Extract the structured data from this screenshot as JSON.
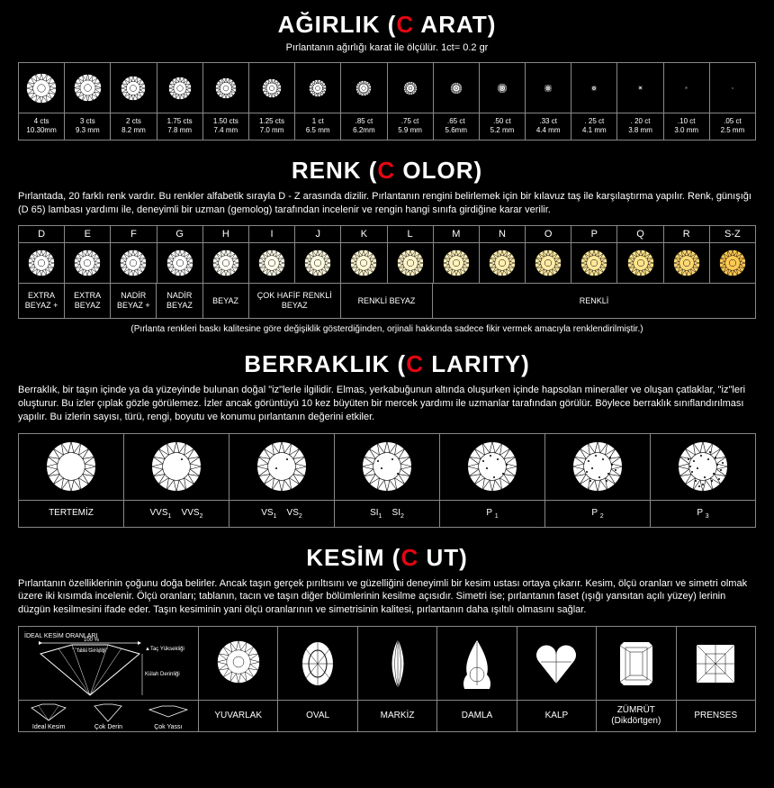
{
  "accent_color": "#e30613",
  "background_color": "#000000",
  "border_color": "#888888",
  "text_color": "#ffffff",
  "carat": {
    "title_white1": "AĞIRLIK (",
    "title_red": "C",
    "title_white2": " ARAT)",
    "subtitle": "Pırlantanın ağırlığı karat ile ölçülür. 1ct= 0.2 gr",
    "items": [
      {
        "cts": "4 cts",
        "mm": "10.30mm",
        "size": 34
      },
      {
        "cts": "3 cts",
        "mm": "9.3 mm",
        "size": 31
      },
      {
        "cts": "2 cts",
        "mm": "8.2 mm",
        "size": 28
      },
      {
        "cts": "1.75 cts",
        "mm": "7.8 mm",
        "size": 26
      },
      {
        "cts": "1.50 cts",
        "mm": "7.4 mm",
        "size": 24
      },
      {
        "cts": "1.25 cts",
        "mm": "7.0 mm",
        "size": 22
      },
      {
        "cts": "1 ct",
        "mm": "6.5 mm",
        "size": 20
      },
      {
        "cts": ".85 ct",
        "mm": "6.2mm",
        "size": 18
      },
      {
        "cts": ".75 ct",
        "mm": "5.9 mm",
        "size": 16
      },
      {
        "cts": ".65 ct",
        "mm": "5.6mm",
        "size": 14
      },
      {
        "cts": ".50 ct",
        "mm": "5.2 mm",
        "size": 12
      },
      {
        "cts": ".33 ct",
        "mm": "4.4 mm",
        "size": 10
      },
      {
        "cts": ". 25 ct",
        "mm": "4.1 mm",
        "size": 8
      },
      {
        "cts": ". 20 ct",
        "mm": "3.8 mm",
        "size": 7
      },
      {
        "cts": ".10 ct",
        "mm": "3.0 mm",
        "size": 5
      },
      {
        "cts": ".05 ct",
        "mm": "2.5 mm",
        "size": 4
      }
    ]
  },
  "color": {
    "title_white1": "RENK (",
    "title_red": "C",
    "title_white2": " OLOR)",
    "desc": "Pırlantada, 20 farklı renk vardır. Bu renkler alfabetik sırayla D - Z arasında dizilir. Pırlantanın rengini belirlemek için bir kılavuz taş ile karşılaştırma yapılır. Renk, günışığı (D 65) lambası yardımı ile, deneyimli bir uzman (gemolog) tarafından incelenir ve rengin hangi sınıfa girdiğine karar verilir.",
    "footnote": "(Pırlanta renkleri baskı kalitesine göre değişiklik gösterdiğinden, orjinali hakkında sadece fikir vermek amacıyla renklendirilmiştir.)",
    "grades": [
      {
        "letter": "D",
        "tint": "#ffffff"
      },
      {
        "letter": "E",
        "tint": "#ffffff"
      },
      {
        "letter": "F",
        "tint": "#ffffff"
      },
      {
        "letter": "G",
        "tint": "#ffffff"
      },
      {
        "letter": "H",
        "tint": "#fffef6"
      },
      {
        "letter": "I",
        "tint": "#fffceb"
      },
      {
        "letter": "J",
        "tint": "#fffae0"
      },
      {
        "letter": "K",
        "tint": "#fff7d4"
      },
      {
        "letter": "L",
        "tint": "#fff4c8"
      },
      {
        "letter": "M",
        "tint": "#fff1bc"
      },
      {
        "letter": "N",
        "tint": "#ffeeb0"
      },
      {
        "letter": "O",
        "tint": "#ffeba4"
      },
      {
        "letter": "P",
        "tint": "#ffe898"
      },
      {
        "letter": "Q",
        "tint": "#ffe58c"
      },
      {
        "letter": "R",
        "tint": "#ffd974"
      },
      {
        "letter": "S-Z",
        "tint": "#ffca54"
      }
    ],
    "groups": [
      {
        "label": "EXTRA BEYAZ +",
        "span": 1
      },
      {
        "label": "EXTRA BEYAZ",
        "span": 1
      },
      {
        "label": "NADİR BEYAZ +",
        "span": 1
      },
      {
        "label": "NADİR BEYAZ",
        "span": 1
      },
      {
        "label": "BEYAZ",
        "span": 1
      },
      {
        "label": "ÇOK HAFİF RENKLİ BEYAZ",
        "span": 2
      },
      {
        "label": "RENKLİ BEYAZ",
        "span": 2
      },
      {
        "label": "RENKLİ",
        "span": 7
      }
    ]
  },
  "clarity": {
    "title_white1": "BERRAKLIK (",
    "title_red": "C",
    "title_white2": " LARITY)",
    "desc": "Berraklık, bir taşın içinde ya da yüzeyinde bulunan doğal \"iz\"lerle ilgilidir. Elmas, yerkabuğunun altında oluşurken içinde hapsolan mineraller ve oluşan çatlaklar, \"iz\"leri oluşturur. Bu izler çıplak gözle görülemez. İzler ancak görüntüyü 10 kez büyüten bir mercek yardımı ile uzmanlar tarafından görülür. Böylece berraklık sınıflandırılması yapılır. Bu izlerin sayısı, türü, rengi, boyutu ve konumu pırlantanın değerini etkiler.",
    "grades": [
      {
        "label_html": "TERTEMİZ",
        "flaws": 0
      },
      {
        "label_html": "VVS<span class='sub'>1</span>&nbsp;&nbsp;&nbsp;&nbsp;VVS<span class='sub'>2</span>",
        "flaws": 1
      },
      {
        "label_html": "VS<span class='sub'>1</span>&nbsp;&nbsp;&nbsp;&nbsp;VS<span class='sub'>2</span>",
        "flaws": 2
      },
      {
        "label_html": "SI<span class='sub'>1</span>&nbsp;&nbsp;&nbsp;&nbsp;SI<span class='sub'>2</span>",
        "flaws": 4
      },
      {
        "label_html": "P <span class='sub'>1</span>",
        "flaws": 7
      },
      {
        "label_html": "P <span class='sub'>2</span>",
        "flaws": 12
      },
      {
        "label_html": "P <span class='sub'>3</span>",
        "flaws": 20
      }
    ]
  },
  "cut": {
    "title_white1": "KESİM (",
    "title_red": "C",
    "title_white2": " UT)",
    "desc": "Pırlantanın özelliklerinin çoğunu doğa belirler. Ancak taşın gerçek pırıltısını ve güzelliğini deneyimli bir kesim ustası ortaya çıkarır. Kesim, ölçü oranları ve simetri olmak üzere iki kısımda incelenir. Ölçü oranları; tablanın, tacın ve taşın diğer bölümlerinin kesilme açısıdır. Simetri ise; pırlantanın faset (ışığı yansıtan açılı yüzey) lerinin düzgün kesilmesini ifade eder. Taşın kesiminin yani ölçü oranlarının ve simetrisinin kalitesi, pırlantanın daha ışıltılı olmasını sağlar.",
    "ideal_title": "İDEAL KESİM ORANLARI",
    "ideal_annotations": {
      "top": "100 %",
      "table": "Tabla Genişliği",
      "crown": "Taç Yüksekliği",
      "pavilion": "Külah Derinliği"
    },
    "variants": [
      "Ideal Kesim",
      "Çok Derin",
      "Çok Yassı"
    ],
    "shapes": [
      {
        "label": "YUVARLAK",
        "shape": "round"
      },
      {
        "label": "OVAL",
        "shape": "oval"
      },
      {
        "label": "MARKİZ",
        "shape": "marquise"
      },
      {
        "label": "DAMLA",
        "shape": "pear"
      },
      {
        "label": "KALP",
        "shape": "heart"
      },
      {
        "label": "ZÜMRÜT (Dikdörtgen)",
        "shape": "emerald"
      },
      {
        "label": "PRENSES",
        "shape": "princess"
      }
    ]
  }
}
